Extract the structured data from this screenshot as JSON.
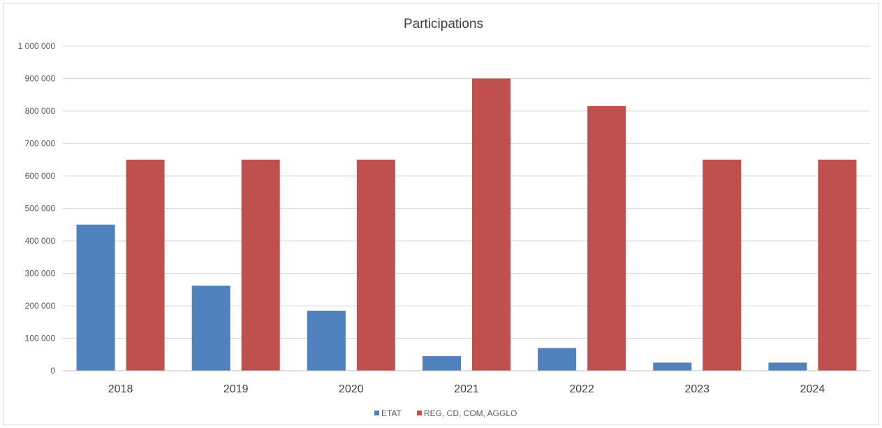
{
  "chart_data": {
    "type": "bar",
    "title": "Participations",
    "xlabel": "",
    "ylabel": "",
    "categories": [
      "2018",
      "2019",
      "2020",
      "2021",
      "2022",
      "2023",
      "2024"
    ],
    "series": [
      {
        "name": "ETAT",
        "color": "#4f81bd",
        "values": [
          450000,
          262000,
          185000,
          45000,
          70000,
          25000,
          25000
        ]
      },
      {
        "name": "REG, CD, COM, AGGLO",
        "color": "#c0504d",
        "values": [
          650000,
          650000,
          650000,
          900000,
          815000,
          650000,
          650000
        ]
      }
    ],
    "ylim": [
      0,
      1000000
    ],
    "yticks": [
      0,
      100000,
      200000,
      300000,
      400000,
      500000,
      600000,
      700000,
      800000,
      900000,
      1000000
    ],
    "ytick_labels": [
      "0",
      "100 000",
      "200 000",
      "300 000",
      "400 000",
      "500 000",
      "600 000",
      "700 000",
      "800 000",
      "900 000",
      "1 000 000"
    ],
    "grid": true,
    "legend_position": "bottom"
  }
}
